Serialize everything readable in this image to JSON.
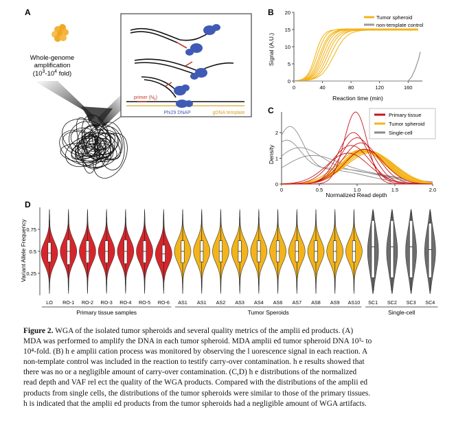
{
  "panel_a": {
    "label": "A",
    "wga_text": [
      "Whole-genome",
      "amplification",
      "(10",
      "3",
      "-10",
      "4",
      " fold)"
    ],
    "primer_label": "primer (N",
    "primer_sub": "6",
    "primer_close": ")",
    "dnap_label": "Phi29 DNAP",
    "template_label": "gDNA template"
  },
  "panel_b": {
    "label": "B",
    "ylabel": "Signal (A.U.)",
    "xlabel": "Reaction time (min)",
    "legend": [
      "Tumor spheroid",
      "non-template control"
    ]
  },
  "panel_c": {
    "label": "C",
    "ylabel": "Density",
    "xlabel": "Normalized Read depth",
    "legend": [
      "Primary tissue",
      "Tumor spheroid",
      "Single-cell"
    ]
  },
  "panel_d": {
    "label": "D",
    "ylabel": "Variant Allele Frequency",
    "groups": [
      "Primary tissue samples",
      "Tumor Speroids",
      "Single-cell"
    ]
  },
  "colors": {
    "primary": "#d7262b",
    "spheroid": "#f3b41b",
    "single": "#6e6e6e",
    "dnap": "#3f5bb5"
  },
  "chart_data": [
    {
      "type": "line",
      "panel": "B",
      "xlabel": "Reaction time (min)",
      "ylabel": "Signal (A.U.)",
      "xlim": [
        0,
        180
      ],
      "ylim": [
        0,
        20
      ],
      "xticks": [
        0,
        40,
        80,
        120,
        160
      ],
      "yticks": [
        0,
        5,
        10,
        15,
        20
      ],
      "legend_position": "top-right",
      "series": [
        {
          "name": "Tumor spheroid",
          "color": "#f3b41b",
          "curves": [
            {
              "mid": 30,
              "k": 0.18,
              "max": 15.0
            },
            {
              "mid": 33,
              "k": 0.16,
              "max": 15.2
            },
            {
              "mid": 36,
              "k": 0.15,
              "max": 15.0
            },
            {
              "mid": 38,
              "k": 0.15,
              "max": 14.9
            },
            {
              "mid": 41,
              "k": 0.14,
              "max": 15.1
            },
            {
              "mid": 44,
              "k": 0.13,
              "max": 15.0
            },
            {
              "mid": 47,
              "k": 0.13,
              "max": 14.8
            },
            {
              "mid": 51,
              "k": 0.12,
              "max": 15.0
            },
            {
              "mid": 56,
              "k": 0.11,
              "max": 14.9
            }
          ]
        },
        {
          "name": "non-template control",
          "color": "#9a9a9a",
          "x": [
            0,
            150,
            160,
            165,
            170,
            175,
            177
          ],
          "y": [
            0,
            0,
            0,
            1.2,
            3.5,
            6.5,
            8.5
          ]
        }
      ]
    },
    {
      "type": "line",
      "panel": "C",
      "xlabel": "Normalized Read depth",
      "ylabel": "Density",
      "xlim": [
        0,
        2.0
      ],
      "ylim": [
        0,
        2.8
      ],
      "xticks": [
        0,
        0.5,
        1.0,
        1.5,
        2.0
      ],
      "yticks": [
        0,
        1,
        2
      ],
      "legend_position": "top-right",
      "series": [
        {
          "name": "Primary tissue",
          "color": "#c4161c",
          "curves": [
            {
              "mu": 0.98,
              "sd": 0.15,
              "h": 2.8
            },
            {
              "mu": 0.95,
              "sd": 0.2,
              "h": 2.0
            },
            {
              "mu": 1.0,
              "sd": 0.22,
              "h": 1.8
            },
            {
              "mu": 0.92,
              "sd": 0.25,
              "h": 1.5
            },
            {
              "mu": 1.05,
              "sd": 0.24,
              "h": 1.6
            },
            {
              "mu": 1.1,
              "sd": 0.26,
              "h": 1.35
            },
            {
              "mu": 0.88,
              "sd": 0.28,
              "h": 1.2
            }
          ]
        },
        {
          "name": "Tumor spheroid",
          "color": "#f3b41b",
          "curves": [
            {
              "mu": 1.1,
              "sd": 0.28,
              "h": 1.35
            },
            {
              "mu": 1.12,
              "sd": 0.3,
              "h": 1.3
            },
            {
              "mu": 1.08,
              "sd": 0.29,
              "h": 1.28
            },
            {
              "mu": 1.15,
              "sd": 0.31,
              "h": 1.25
            },
            {
              "mu": 1.05,
              "sd": 0.3,
              "h": 1.32
            },
            {
              "mu": 1.18,
              "sd": 0.32,
              "h": 1.22
            },
            {
              "mu": 1.13,
              "sd": 0.3,
              "h": 1.3
            },
            {
              "mu": 1.09,
              "sd": 0.29,
              "h": 1.35
            },
            {
              "mu": 1.16,
              "sd": 0.31,
              "h": 1.28
            },
            {
              "mu": 1.11,
              "sd": 0.3,
              "h": 1.26
            }
          ]
        },
        {
          "name": "Single-cell",
          "color": "#8a8a8a",
          "curves": [
            {
              "mu": 0.1,
              "sd": 0.18,
              "h": 1.9,
              "tail": 0.55,
              "tmu": 0.6,
              "tsd": 0.5
            },
            {
              "mu": 0.05,
              "sd": 0.2,
              "h": 1.4,
              "tail": 0.6,
              "tmu": 0.7,
              "tsd": 0.55
            },
            {
              "mu": 0.2,
              "sd": 0.3,
              "h": 1.1,
              "tail": 0.5,
              "tmu": 0.8,
              "tsd": 0.6
            },
            {
              "mu": 0.35,
              "sd": 0.35,
              "h": 0.8,
              "tail": 0.45,
              "tmu": 0.9,
              "tsd": 0.6
            }
          ]
        }
      ]
    },
    {
      "type": "violin",
      "panel": "D",
      "ylabel": "Variant Allele Frequency",
      "ylim": [
        0,
        1
      ],
      "yticks": [
        0.25,
        0.5,
        0.75
      ],
      "categories": [
        "LO",
        "RO-1",
        "RO-2",
        "RO-3",
        "RO-4",
        "RO-5",
        "RO-6",
        "AS1",
        "AS1",
        "AS2",
        "AS3",
        "AS4",
        "AS6",
        "AS7",
        "AS8",
        "AS9",
        "AS10",
        "SC1",
        "SC2",
        "SC3",
        "SC4"
      ],
      "groups": [
        {
          "name": "Primary tissue samples",
          "start": 0,
          "count": 7,
          "color": "#d7262b"
        },
        {
          "name": "Tumor Speroids",
          "start": 7,
          "count": 10,
          "color": "#f3b41b"
        },
        {
          "name": "Single-cell",
          "start": 17,
          "count": 4,
          "color": "#6e6e6e"
        }
      ],
      "medians": [
        0.48,
        0.5,
        0.5,
        0.5,
        0.5,
        0.5,
        0.47,
        0.5,
        0.5,
        0.5,
        0.5,
        0.5,
        0.5,
        0.5,
        0.5,
        0.5,
        0.5,
        0.55,
        0.55,
        0.55,
        0.52
      ],
      "iqr": [
        [
          0.38,
          0.6
        ],
        [
          0.35,
          0.63
        ],
        [
          0.37,
          0.62
        ],
        [
          0.37,
          0.62
        ],
        [
          0.36,
          0.63
        ],
        [
          0.37,
          0.62
        ],
        [
          0.38,
          0.57
        ],
        [
          0.37,
          0.62
        ],
        [
          0.38,
          0.62
        ],
        [
          0.38,
          0.62
        ],
        [
          0.38,
          0.62
        ],
        [
          0.38,
          0.62
        ],
        [
          0.38,
          0.62
        ],
        [
          0.38,
          0.62
        ],
        [
          0.38,
          0.62
        ],
        [
          0.38,
          0.62
        ],
        [
          0.38,
          0.62
        ],
        [
          0.2,
          0.85
        ],
        [
          0.2,
          0.85
        ],
        [
          0.2,
          0.85
        ],
        [
          0.2,
          0.82
        ]
      ]
    }
  ],
  "caption": {
    "figure_label": "Figure 2.",
    "lines": [
      "WGA of the isolated tumor spheroids and several quality metrics of the amplii ed products. (A)",
      "MDA was performed to amplify the DNA in each tumor spheroid. MDA amplii ed tumor spheroid DNA 10³- to",
      "10⁴-fold. (B) h  e amplii cation process was monitored by observing the l uorescence signal in each reaction. A",
      "non-template control was included in the reaction to testify carry-over contamination. h  e results showed that",
      "there was no or a negligible amount of carry-over contamination. (C,D) h  e distributions of the normalized",
      "read depth and VAF rel ect the quality of the WGA products. Compared with the distributions of the amplii ed",
      "products from single cells, the distributions of the tumor spheroids were similar to those of the primary tissues.",
      "h  is indicated that the amplii ed products from the tumor spheroids had a negligible amount of WGA artifacts."
    ]
  }
}
